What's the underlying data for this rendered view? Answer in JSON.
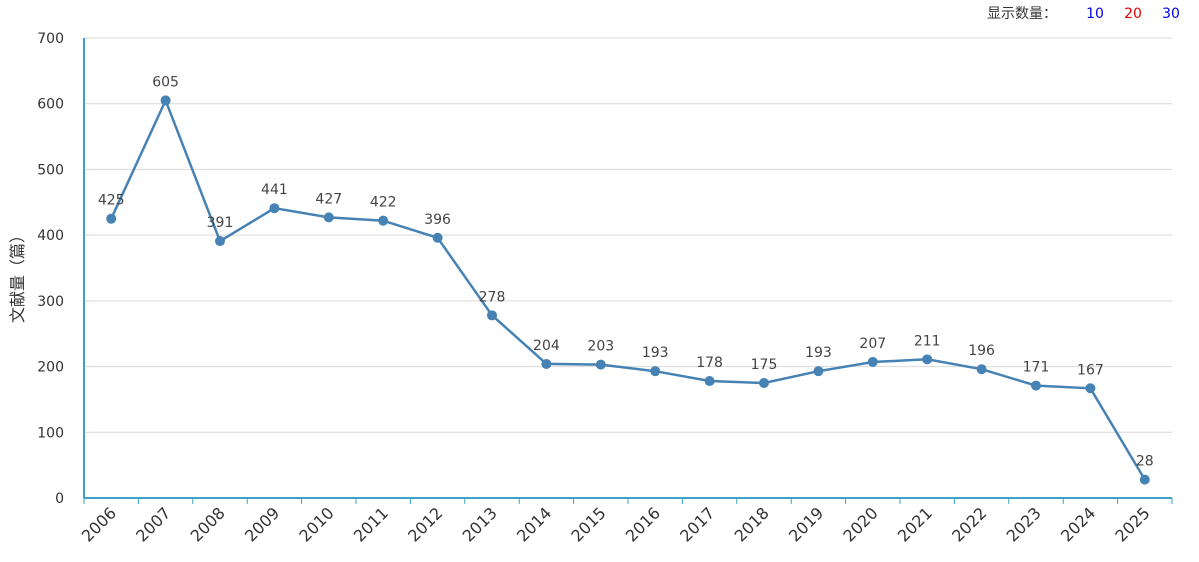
{
  "display_count": {
    "label": "显示数量：",
    "options": [
      {
        "value": "10",
        "color": "#0000ee"
      },
      {
        "value": "20",
        "color": "#dd0000"
      },
      {
        "value": "30",
        "color": "#0000ee"
      }
    ]
  },
  "colors": {
    "line": "#4682b4",
    "axis": "#3aa3c7",
    "grid": "#d9d9d9"
  },
  "chart_data": {
    "type": "line",
    "title": "",
    "xlabel": "",
    "ylabel": "文献量（篇）",
    "ylim": [
      0,
      700
    ],
    "yticks": [
      0,
      100,
      200,
      300,
      400,
      500,
      600,
      700
    ],
    "categories": [
      "2006",
      "2007",
      "2008",
      "2009",
      "2010",
      "2011",
      "2012",
      "2013",
      "2014",
      "2015",
      "2016",
      "2017",
      "2018",
      "2019",
      "2020",
      "2021",
      "2022",
      "2023",
      "2024",
      "2025"
    ],
    "series": [
      {
        "name": "文献量",
        "values": [
          425,
          605,
          391,
          441,
          427,
          422,
          396,
          278,
          204,
          203,
          193,
          178,
          175,
          193,
          207,
          211,
          196,
          171,
          167,
          28
        ]
      }
    ]
  }
}
